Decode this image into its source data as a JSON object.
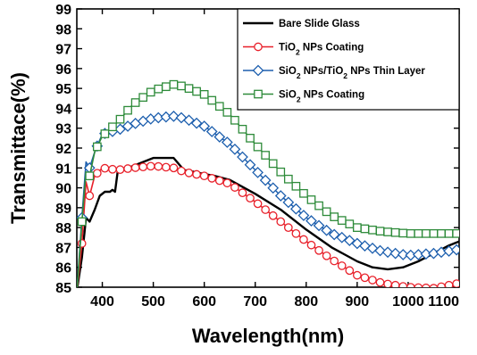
{
  "chart_data": {
    "type": "line",
    "xlabel": "Wavelength(nm)",
    "ylabel": "Transmittace(%)",
    "xlim": [
      350,
      1100
    ],
    "ylim": [
      85,
      99
    ],
    "xticks": [
      "400",
      "500",
      "600",
      "700",
      "800",
      "900",
      "1000",
      "1100"
    ],
    "yticks": [
      "85",
      "86",
      "87",
      "88",
      "89",
      "90",
      "91",
      "92",
      "93",
      "94",
      "95",
      "96",
      "97",
      "98",
      "99"
    ],
    "legend_position": "top-right",
    "series": [
      {
        "name": "Bare Slide Glass",
        "name_parts": [
          "Bare Slide Glass"
        ],
        "color": "#000000",
        "marker": "none",
        "x": [
          350,
          360,
          368,
          375,
          385,
          395,
          405,
          415,
          420,
          425,
          430,
          435,
          440,
          460,
          480,
          500,
          520,
          540,
          560,
          580,
          600,
          620,
          650,
          700,
          750,
          800,
          850,
          900,
          930,
          960,
          990,
          1020,
          1050,
          1080,
          1100
        ],
        "y": [
          84.8,
          86.5,
          88.5,
          88.3,
          88.9,
          89.6,
          89.8,
          89.8,
          89.9,
          89.8,
          90.8,
          90.8,
          90.9,
          91.1,
          91.3,
          91.5,
          91.5,
          91.5,
          90.9,
          90.8,
          90.7,
          90.6,
          90.4,
          89.7,
          88.9,
          87.9,
          87.0,
          86.3,
          86.0,
          85.9,
          86.0,
          86.3,
          86.7,
          87.1,
          87.3
        ]
      },
      {
        "name": "TiO2 NPs Coating",
        "name_parts": [
          "TiO",
          "2",
          " NPs Coating"
        ],
        "color": "#e8202a",
        "marker": "circle",
        "x": [
          350,
          360,
          368,
          375,
          385,
          400,
          430,
          460,
          500,
          540,
          560,
          600,
          650,
          700,
          750,
          800,
          850,
          900,
          950,
          1000,
          1050,
          1100
        ],
        "y": [
          84.7,
          87.2,
          90.3,
          89.6,
          90.6,
          91.0,
          90.9,
          91.0,
          91.1,
          91.0,
          90.8,
          90.6,
          90.2,
          89.3,
          88.3,
          87.3,
          86.4,
          85.6,
          85.2,
          85.0,
          84.95,
          85.2
        ]
      },
      {
        "name": "SiO2 NPs/TiO2 NPs Thin Layer",
        "name_parts": [
          "SiO",
          "2",
          " NPs/TiO",
          "2",
          " NPs Thin Layer"
        ],
        "color": "#1d5fae",
        "marker": "diamond",
        "x": [
          350,
          360,
          368,
          375,
          385,
          400,
          430,
          460,
          500,
          540,
          560,
          600,
          650,
          700,
          750,
          800,
          850,
          900,
          950,
          1000,
          1050,
          1100
        ],
        "y": [
          84.7,
          88.5,
          91.3,
          91.0,
          91.8,
          92.7,
          92.9,
          93.2,
          93.5,
          93.6,
          93.5,
          93.1,
          92.2,
          90.9,
          89.6,
          88.5,
          87.7,
          87.2,
          86.8,
          86.6,
          86.7,
          86.9
        ]
      },
      {
        "name": "SiO2 NPs Coating",
        "name_parts": [
          "SiO",
          "2",
          " NPs Coating"
        ],
        "color": "#2e8b3a",
        "marker": "square",
        "x": [
          350,
          360,
          368,
          375,
          385,
          400,
          430,
          460,
          500,
          540,
          560,
          600,
          650,
          700,
          750,
          800,
          850,
          900,
          950,
          1000,
          1050,
          1100
        ],
        "y": [
          84.7,
          88.3,
          90.8,
          90.6,
          91.8,
          92.6,
          93.3,
          94.2,
          94.9,
          95.2,
          95.1,
          94.7,
          93.7,
          92.2,
          90.8,
          89.6,
          88.6,
          88.0,
          87.8,
          87.7,
          87.7,
          87.7
        ]
      }
    ]
  }
}
